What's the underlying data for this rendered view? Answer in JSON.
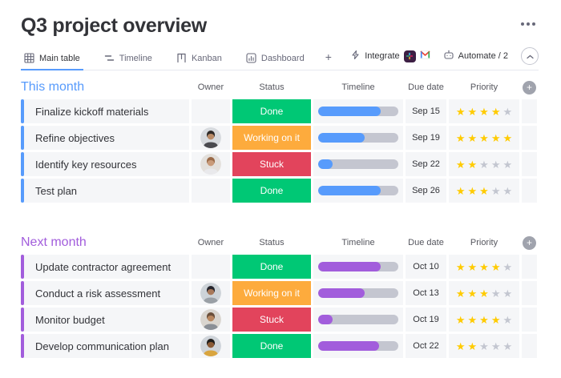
{
  "header": {
    "title": "Q3 project overview",
    "more_options": "⋯"
  },
  "tabs": [
    {
      "label": "Main table",
      "icon": "table-grid-icon",
      "active": true
    },
    {
      "label": "Timeline",
      "icon": "timeline-icon",
      "active": false
    },
    {
      "label": "Kanban",
      "icon": "kanban-icon",
      "active": false
    },
    {
      "label": "Dashboard",
      "icon": "dashboard-chart-icon",
      "active": false
    }
  ],
  "add_view_label": "+",
  "toolbar": {
    "integrate_label": "Integrate",
    "integrate_icons": [
      "bolt-icon",
      "slack-icon",
      "gmail-icon"
    ],
    "automate_label": "Automate / 2",
    "automate_icon": "robot-icon",
    "collapse_icon": "chevron-up-icon"
  },
  "columns": [
    "Owner",
    "Status",
    "Timeline",
    "Due date",
    "Priority"
  ],
  "glyphs": {
    "plus": "+",
    "star": "★"
  },
  "colors": {
    "status": {
      "Done": "#00c875",
      "Working on it": "#fdab3d",
      "Stuck": "#e2445c"
    },
    "accent_blue": "#579bfc",
    "accent_purple": "#a25ddc",
    "star_filled": "#ffcb00",
    "star_empty": "#c3c6d0",
    "cell_bg": "#f5f6f8",
    "track": "#c4c6d0"
  },
  "groups": [
    {
      "name": "This month",
      "accent": "#579bfc",
      "rows": [
        {
          "task": "Finalize kickoff materials",
          "owner": null,
          "status": "Done",
          "timeline_pct": 78,
          "due": "Sep 15",
          "priority": 4
        },
        {
          "task": "Refine objectives",
          "owner": {
            "bg": "#d7dade",
            "skin": "#b98b68",
            "hair": "#2f2a28",
            "shirt": "#4a4a4f"
          },
          "status": "Working on it",
          "timeline_pct": 58,
          "due": "Sep 19",
          "priority": 5
        },
        {
          "task": "Identify key resources",
          "owner": {
            "bg": "#e3e0dc",
            "skin": "#c99b7a",
            "hair": "#9a6a48",
            "shirt": "#e9e9ec"
          },
          "status": "Stuck",
          "timeline_pct": 18,
          "due": "Sep 22",
          "priority": 2
        },
        {
          "task": "Test plan",
          "owner": null,
          "status": "Done",
          "timeline_pct": 78,
          "due": "Sep 26",
          "priority": 3
        }
      ]
    },
    {
      "name": "Next month",
      "accent": "#a25ddc",
      "rows": [
        {
          "task": "Update contractor agreement",
          "owner": null,
          "status": "Done",
          "timeline_pct": 78,
          "due": "Oct 10",
          "priority": 4
        },
        {
          "task": "Conduct a risk assessment",
          "owner": {
            "bg": "#cdd3d8",
            "skin": "#a8795a",
            "hair": "#26262e",
            "shirt": "#9aa0a6"
          },
          "status": "Working on it",
          "timeline_pct": 58,
          "due": "Oct 13",
          "priority": 3
        },
        {
          "task": "Monitor budget",
          "owner": {
            "bg": "#d9d5cf",
            "skin": "#b9875f",
            "hair": "#6b4f3a",
            "shirt": "#8a8f96"
          },
          "status": "Stuck",
          "timeline_pct": 18,
          "due": "Oct 19",
          "priority": 4
        },
        {
          "task": "Develop communication plan",
          "owner": {
            "bg": "#cfd4da",
            "skin": "#8a5a36",
            "hair": "#1f1d1b",
            "shirt": "#d9a53f"
          },
          "status": "Done",
          "timeline_pct": 76,
          "due": "Oct 22",
          "priority": 2
        }
      ]
    }
  ]
}
